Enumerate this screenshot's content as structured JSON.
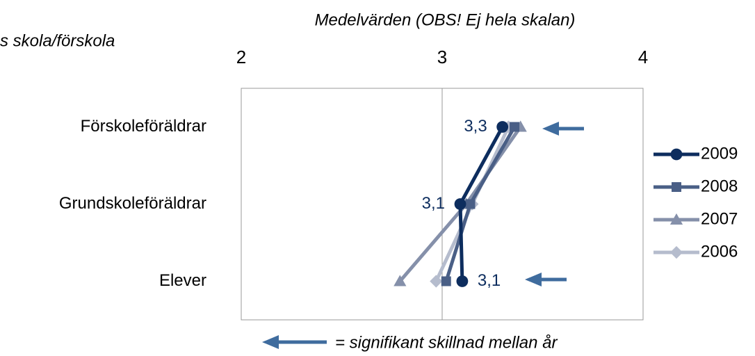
{
  "chart_data": {
    "type": "line",
    "title": "Medelvärden (OBS! Ej hela skalan)",
    "subtitle": "s skola/förskola",
    "annotation": "= signifikant skillnad mellan år",
    "categories": [
      "Förskoleföräldrar",
      "Grundskoleföräldrar",
      "Elever"
    ],
    "xlim": [
      2,
      4
    ],
    "xticks": [
      2,
      3,
      4
    ],
    "grid": true,
    "legend": "right",
    "series": [
      {
        "name": "2009",
        "color": "#0d2d5e",
        "marker": "circle",
        "values": [
          3.3,
          3.09,
          3.1
        ],
        "value_labels": [
          "3,3",
          "3,1",
          "3,1"
        ]
      },
      {
        "name": "2008",
        "color": "#4a5f86",
        "marker": "square",
        "values": [
          3.36,
          3.14,
          3.02
        ]
      },
      {
        "name": "2007",
        "color": "#8590aa",
        "marker": "triangle",
        "values": [
          3.39,
          3.12,
          2.79
        ]
      },
      {
        "name": "2006",
        "color": "#b5bccd",
        "marker": "diamond",
        "values": [
          3.33,
          3.15,
          2.97
        ]
      }
    ]
  }
}
